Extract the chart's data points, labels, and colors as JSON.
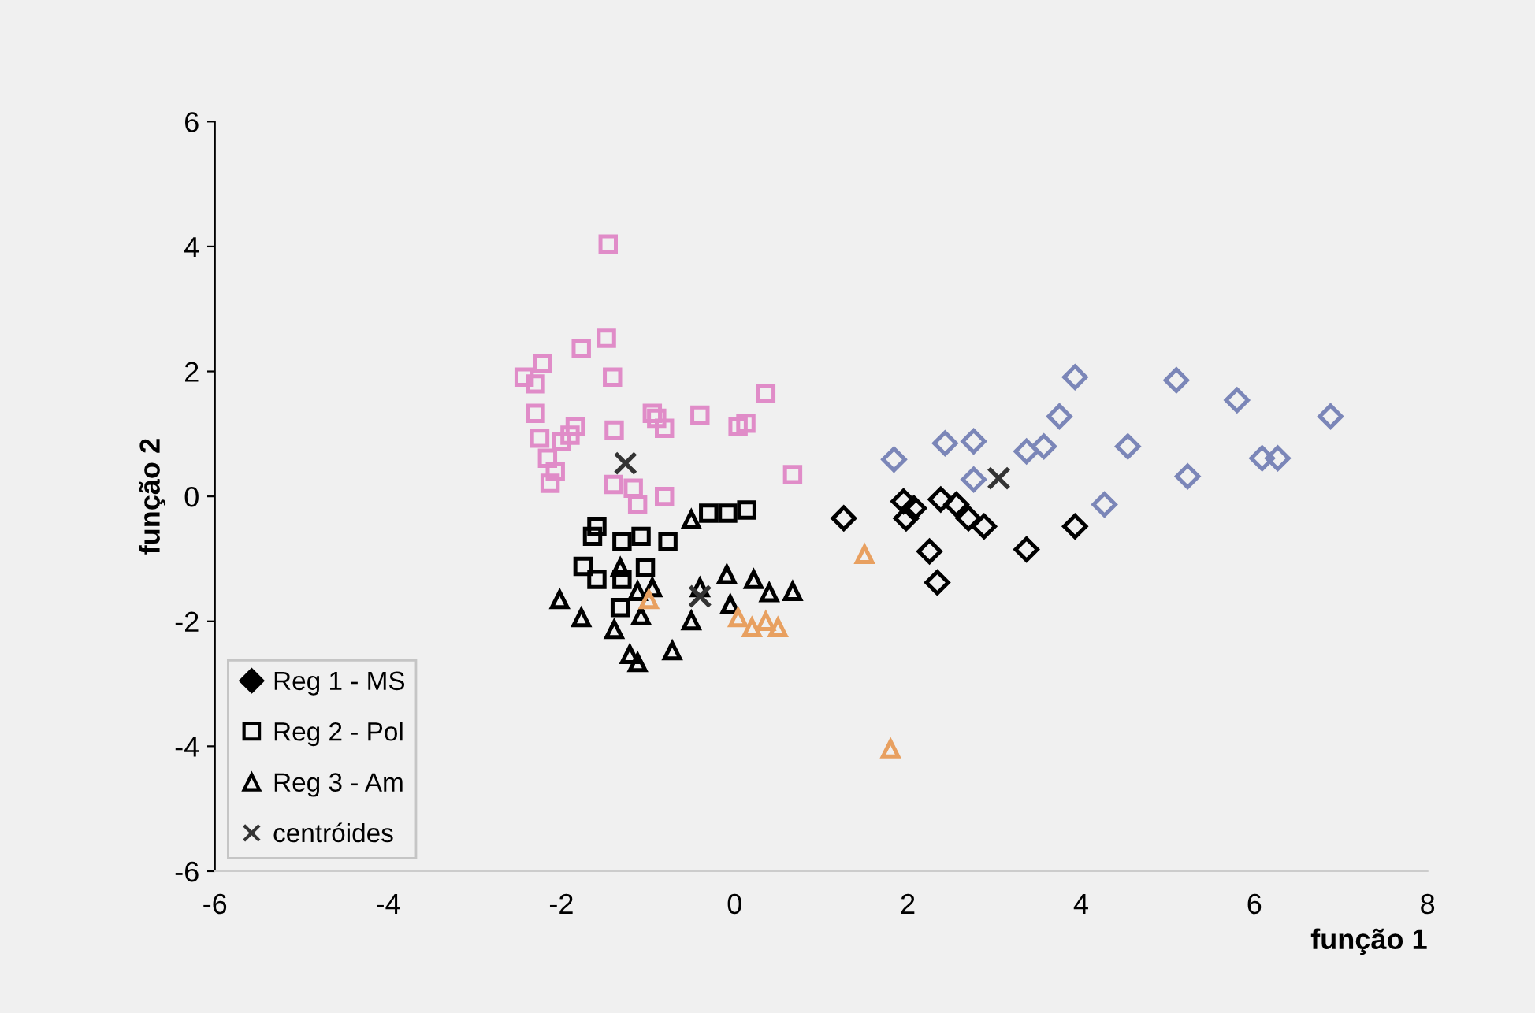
{
  "chart_data": {
    "type": "scatter",
    "xlabel": "função 1",
    "ylabel": "função 2",
    "xlim": [
      -6,
      8
    ],
    "xticks": [
      -6,
      -4,
      -2,
      0,
      2,
      4,
      6,
      8
    ],
    "ylim": [
      -6,
      6
    ],
    "yticks": [
      -6,
      -4,
      -2,
      0,
      2,
      4,
      6
    ],
    "grid": false,
    "legend": "bottom left",
    "series": [
      {
        "name": "Reg 1 - MS",
        "marker": "diamond",
        "color": "#000000",
        "x": [
          3.93,
          5.1,
          5.8,
          6.88,
          3.75,
          2.43,
          2.76,
          1.84,
          3.37,
          3.57,
          4.54,
          6.09,
          6.27,
          5.23,
          2.76,
          4.27,
          1.26,
          1.95,
          2.07,
          1.98,
          2.38,
          2.56,
          2.7,
          2.88,
          3.93,
          3.37,
          2.25,
          2.34
        ],
        "values": [
          1.91,
          1.86,
          1.54,
          1.28,
          1.28,
          0.85,
          0.88,
          0.59,
          0.72,
          0.8,
          0.8,
          0.61,
          0.61,
          0.32,
          0.27,
          -0.13,
          -0.35,
          -0.08,
          -0.19,
          -0.35,
          -0.05,
          -0.13,
          -0.35,
          -0.48,
          -0.48,
          -0.85,
          -0.88,
          -1.38
        ],
        "colors": [
          "#7b86b8",
          "#7b86b8",
          "#7b86b8",
          "#7b86b8",
          "#7b86b8",
          "#7b86b8",
          "#7b86b8",
          "#7b86b8",
          "#7b86b8",
          "#7b86b8",
          "#7b86b8",
          "#7b86b8",
          "#7b86b8",
          "#7b86b8",
          "#7b86b8",
          "#7b86b8",
          "#000000",
          "#000000",
          "#000000",
          "#000000",
          "#000000",
          "#000000",
          "#000000",
          "#000000",
          "#000000",
          "#000000",
          "#000000",
          "#000000"
        ]
      },
      {
        "name": "Reg 2 - Pol",
        "marker": "square",
        "color": "#000000",
        "x": [
          -1.46,
          -1.48,
          -1.77,
          -1.41,
          -2.22,
          -2.43,
          -2.3,
          0.36,
          -0.4,
          0.04,
          0.13,
          -0.95,
          -0.9,
          -0.81,
          -1.39,
          -1.84,
          -1.9,
          -2.3,
          -2.25,
          -2.16,
          -2.07,
          -2.13,
          -2.0,
          0.67,
          -1.4,
          -1.17,
          -1.12,
          -0.81,
          -0.3,
          -0.08,
          0.14,
          -1.59,
          -1.64,
          -1.3,
          -1.08,
          -0.77,
          -1.75,
          -1.59,
          -1.3,
          -1.03,
          -1.32
        ],
        "values": [
          4.04,
          2.53,
          2.37,
          1.91,
          2.13,
          1.91,
          1.8,
          1.65,
          1.3,
          1.12,
          1.17,
          1.33,
          1.25,
          1.09,
          1.06,
          1.12,
          0.98,
          1.33,
          0.93,
          0.61,
          0.4,
          0.21,
          0.88,
          0.35,
          0.19,
          0.13,
          -0.13,
          0.0,
          -0.27,
          -0.27,
          -0.22,
          -0.48,
          -0.64,
          -0.72,
          -0.64,
          -0.72,
          -1.12,
          -1.33,
          -1.33,
          -1.14,
          -1.78
        ],
        "colors": [
          "#e08cc8",
          "#e08cc8",
          "#e08cc8",
          "#e08cc8",
          "#e08cc8",
          "#e08cc8",
          "#e08cc8",
          "#e08cc8",
          "#e08cc8",
          "#e08cc8",
          "#e08cc8",
          "#e08cc8",
          "#e08cc8",
          "#e08cc8",
          "#e08cc8",
          "#e08cc8",
          "#e08cc8",
          "#e08cc8",
          "#e08cc8",
          "#e08cc8",
          "#e08cc8",
          "#e08cc8",
          "#e08cc8",
          "#e08cc8",
          "#e08cc8",
          "#e08cc8",
          "#e08cc8",
          "#e08cc8",
          "#000000",
          "#000000",
          "#000000",
          "#000000",
          "#000000",
          "#000000",
          "#000000",
          "#000000",
          "#000000",
          "#000000",
          "#000000",
          "#000000",
          "#000000"
        ]
      },
      {
        "name": "Reg 3 - Am",
        "marker": "triangle",
        "color": "#000000",
        "x": [
          -0.5,
          -2.02,
          -1.77,
          -1.39,
          -1.08,
          -1.32,
          -1.12,
          -0.95,
          -0.99,
          -1.21,
          -1.12,
          -0.72,
          -0.09,
          0.22,
          0.4,
          0.67,
          -0.5,
          -0.4,
          -0.05,
          0.04,
          0.2,
          0.36,
          0.5,
          1.5,
          1.8
        ],
        "values": [
          -0.37,
          -1.65,
          -1.94,
          -2.13,
          -1.91,
          -1.14,
          -1.52,
          -1.46,
          -1.65,
          -2.53,
          -2.66,
          -2.47,
          -1.25,
          -1.33,
          -1.54,
          -1.52,
          -1.99,
          -1.46,
          -1.73,
          -1.94,
          -2.1,
          -2.0,
          -2.1,
          -0.93,
          -4.04
        ],
        "colors": [
          "#000000",
          "#000000",
          "#000000",
          "#000000",
          "#000000",
          "#000000",
          "#000000",
          "#000000",
          "#e8a060",
          "#000000",
          "#000000",
          "#000000",
          "#000000",
          "#000000",
          "#000000",
          "#000000",
          "#000000",
          "#000000",
          "#000000",
          "#e8a060",
          "#e8a060",
          "#e8a060",
          "#e8a060",
          "#e8a060",
          "#e8a060"
        ]
      },
      {
        "name": "centróides",
        "marker": "cross",
        "color": "#333333",
        "x": [
          3.05,
          -1.26,
          -0.4
        ],
        "values": [
          0.29,
          0.53,
          -1.6
        ]
      }
    ]
  }
}
